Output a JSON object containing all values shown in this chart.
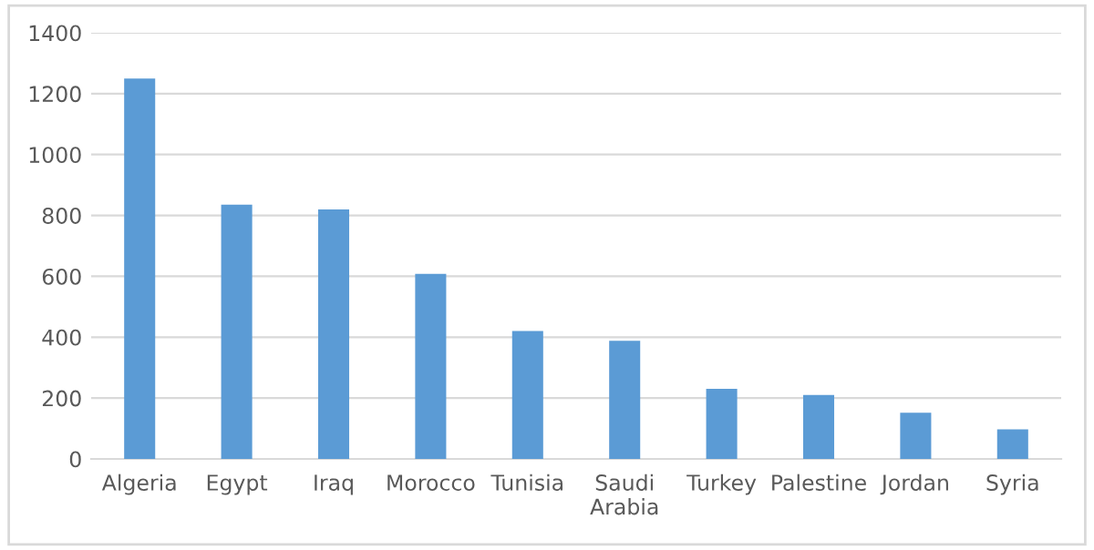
{
  "chart_data": {
    "type": "bar",
    "categories": [
      "Algeria",
      "Egypt",
      "Iraq",
      "Morocco",
      "Tunisia",
      "Saudi Arabia",
      "Turkey",
      "Palestine",
      "Jordan",
      "Syria"
    ],
    "values": [
      1250,
      835,
      820,
      608,
      420,
      388,
      230,
      210,
      152,
      97
    ],
    "color": "#5b9bd5",
    "ylim": [
      0,
      1400
    ],
    "yticks": [
      0,
      200,
      400,
      600,
      800,
      1000,
      1200,
      1400
    ],
    "grid": "y",
    "legend": false
  }
}
